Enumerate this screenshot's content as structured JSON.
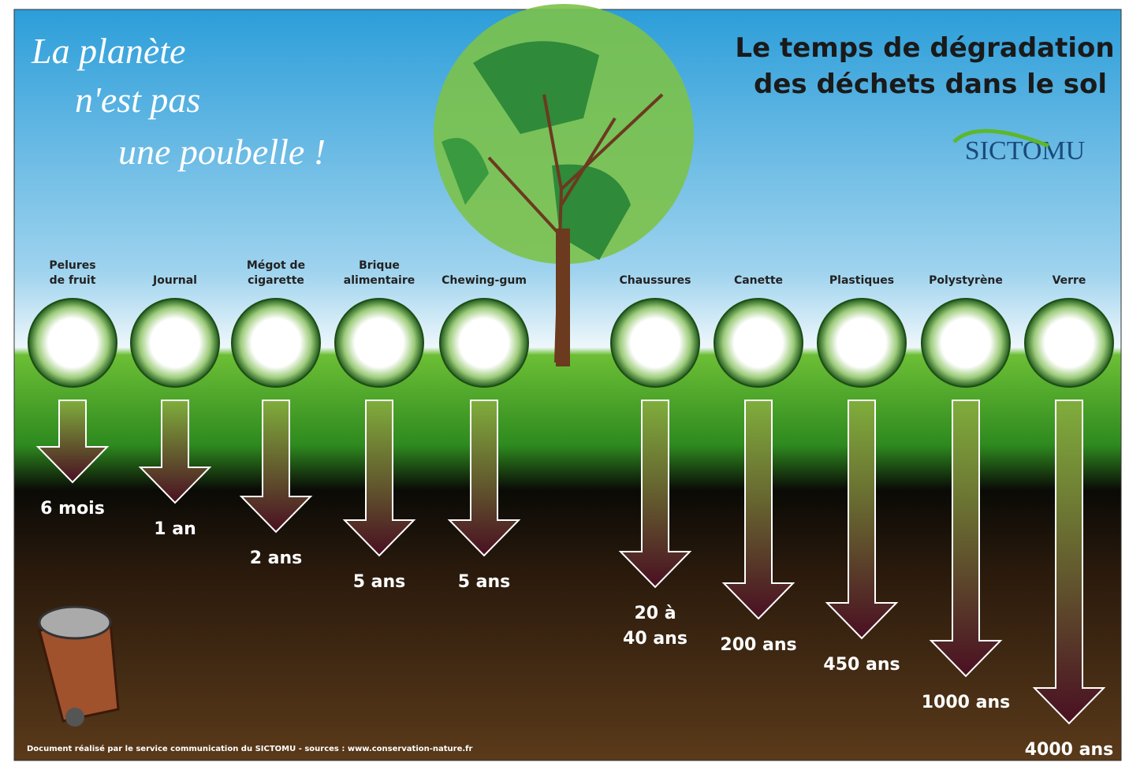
{
  "slogan": [
    "La planète",
    "n'est pas",
    "une poubelle !"
  ],
  "title": [
    "Le temps de dégradation",
    "des déchets dans le sol"
  ],
  "logo": "SICTOMU",
  "items": [
    {
      "label": [
        "Pelures",
        "de fruit"
      ],
      "duration": [
        "6 mois"
      ]
    },
    {
      "label": [
        "Journal"
      ],
      "duration": [
        "1 an"
      ]
    },
    {
      "label": [
        "Mégot de",
        "cigarette"
      ],
      "duration": [
        "2 ans"
      ]
    },
    {
      "label": [
        "Brique",
        "alimentaire"
      ],
      "duration": [
        "5 ans"
      ]
    },
    {
      "label": [
        "Chewing-gum"
      ],
      "duration": [
        "5 ans"
      ]
    },
    {
      "label": [
        "Chaussures"
      ],
      "duration": [
        "20 à",
        "40 ans"
      ]
    },
    {
      "label": [
        "Canette"
      ],
      "duration": [
        "200 ans"
      ]
    },
    {
      "label": [
        "Plastiques"
      ],
      "duration": [
        "450 ans"
      ]
    },
    {
      "label": [
        "Polystyrène"
      ],
      "duration": [
        "1000 ans"
      ]
    },
    {
      "label": [
        "Verre"
      ],
      "duration": [
        "4000 ans"
      ]
    }
  ],
  "footer": "Document réalisé par le service communication du SICTOMU - sources : www.conservation-nature.fr"
}
